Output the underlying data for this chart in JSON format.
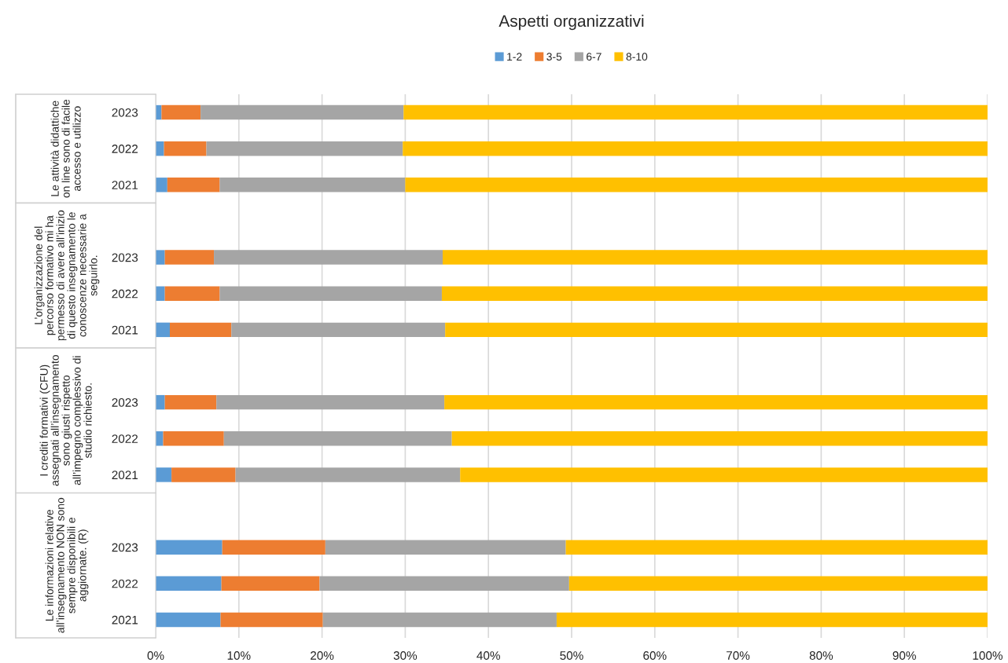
{
  "chart_data": {
    "type": "bar",
    "orientation": "horizontal",
    "stacked": true,
    "title": "Aspetti organizzativi",
    "categories": [
      "2023",
      "2022",
      "2021",
      null,
      "2023",
      "2022",
      "2021",
      null,
      "2023",
      "2022",
      "2021",
      null,
      "2023",
      "2022",
      "2021"
    ],
    "annotations": [
      "Le attività didattiche\non line sono di facile\naccesso e utilizzo",
      "L’organizzazione del\npercorso formativo mi ha\npermesso di avere all’inizio\ndi questo insegnamento le\nconoscenze necessarie a\nseguirlo.",
      "I crediti formativi (CFU)\nassegnati all’insegnamento\nsono giusti rispetto\nall’impegno complessivo di\nstudio richiesto.",
      "Le informazioni relative\nall’insegnamento NON sono\nsempre disponibili e\naggiornate. (R)"
    ],
    "series": [
      {
        "name": "1-2",
        "color": "#5b9bd5",
        "values": [
          0.7,
          1.0,
          1.4,
          null,
          1.1,
          1.1,
          1.7,
          null,
          1.1,
          0.9,
          1.9,
          null,
          8.0,
          7.9,
          7.8
        ]
      },
      {
        "name": "3-5",
        "color": "#ed7d31",
        "values": [
          4.7,
          5.1,
          6.3,
          null,
          5.9,
          6.6,
          7.4,
          null,
          6.2,
          7.3,
          7.7,
          null,
          12.4,
          11.8,
          12.3
        ]
      },
      {
        "name": "6-7",
        "color": "#a5a5a5",
        "values": [
          24.4,
          23.6,
          22.3,
          null,
          27.5,
          26.7,
          25.7,
          null,
          27.4,
          27.4,
          27.0,
          null,
          28.9,
          30.0,
          28.1
        ]
      },
      {
        "name": "8-10",
        "color": "#ffc000",
        "values": [
          70.2,
          70.3,
          70.0,
          null,
          65.5,
          65.6,
          65.2,
          null,
          65.3,
          64.4,
          63.4,
          null,
          50.7,
          50.3,
          51.8
        ]
      }
    ],
    "xlim": [
      0,
      100
    ],
    "xticks": [
      {
        "value": 0,
        "label": "0%"
      },
      {
        "value": 10,
        "label": "10%"
      },
      {
        "value": 20,
        "label": "20%"
      },
      {
        "value": 30,
        "label": "30%"
      },
      {
        "value": 40,
        "label": "40%"
      },
      {
        "value": 50,
        "label": "50%"
      },
      {
        "value": 60,
        "label": "60%"
      },
      {
        "value": 70,
        "label": "70%"
      },
      {
        "value": 80,
        "label": "80%"
      },
      {
        "value": 90,
        "label": "90%"
      },
      {
        "value": 100,
        "label": "100%"
      }
    ],
    "grid": "x",
    "legend": "top"
  }
}
